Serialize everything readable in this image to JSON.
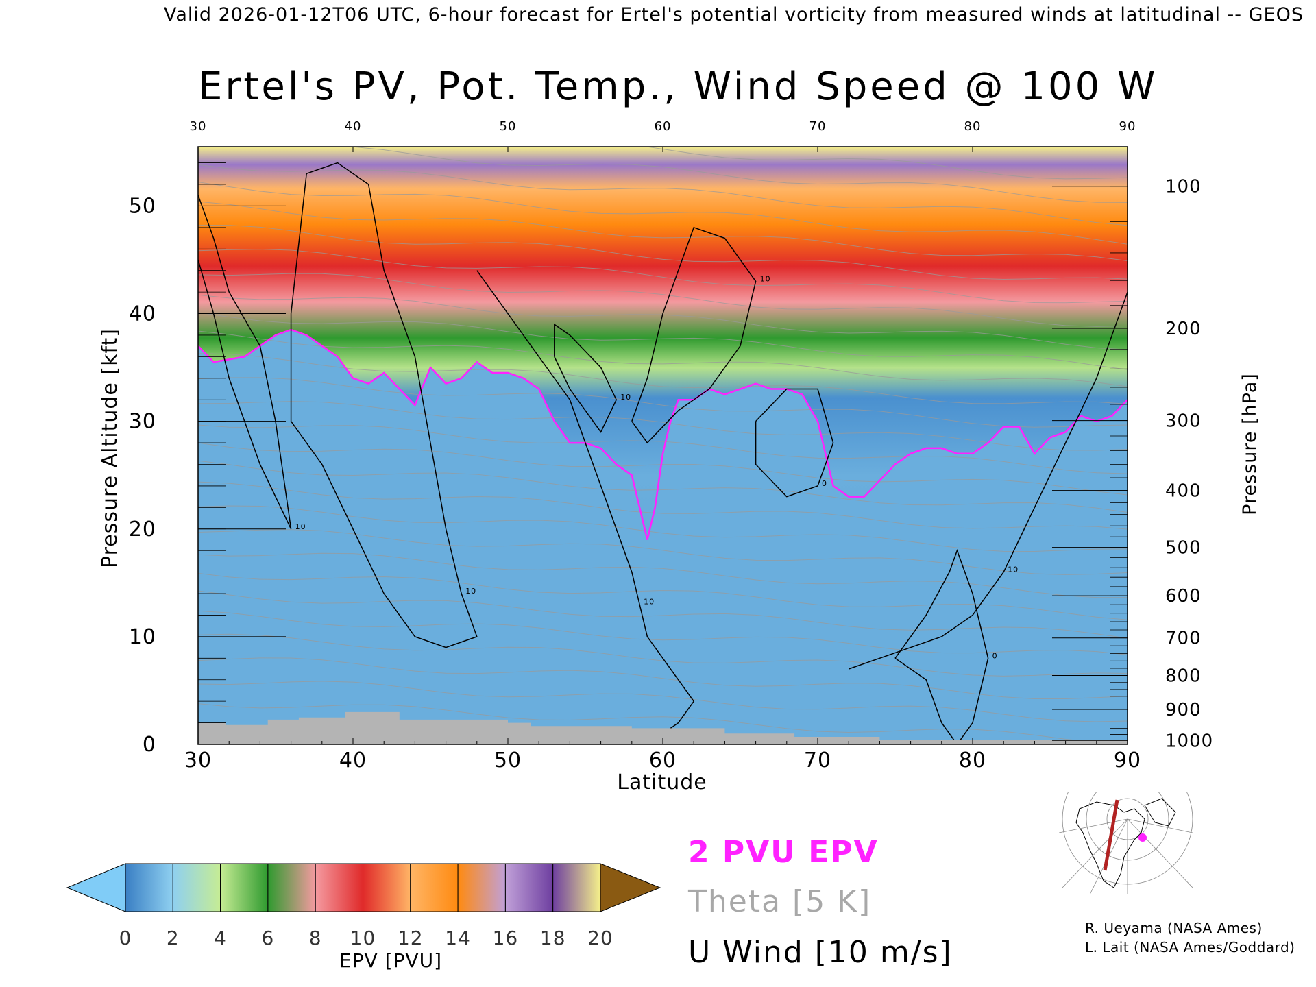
{
  "header": {
    "caption": "Valid 2026-01-12T06 UTC, 6-hour forecast for Ertel's potential vorticity from measured winds at latitudinal -- GEOS",
    "title": "Ertel's PV, Pot. Temp., Wind Speed @ 100 W"
  },
  "legend": {
    "epv_line": "2 PVU EPV",
    "theta_line": "Theta [5 K]",
    "wind_line": "U Wind [10 m/s]"
  },
  "colorbar": {
    "label": "EPV [PVU]",
    "ticks": [
      "0",
      "2",
      "4",
      "6",
      "8",
      "10",
      "12",
      "14",
      "16",
      "18",
      "20"
    ],
    "colors": [
      "#3a7fc4",
      "#8fd0f0",
      "#c6ec94",
      "#2f9a2f",
      "#f49aa0",
      "#e02a2a",
      "#ffb566",
      "#ff8a10",
      "#c0a0d8",
      "#6e3fa0",
      "#f5f08a"
    ],
    "under_color": "#80ccf7",
    "over_color": "#8a5a12"
  },
  "credits": {
    "line1": "R. Ueyama (NASA Ames)",
    "line2": "L. Lait (NASA Ames/Goddard)"
  },
  "chart_data": {
    "type": "heatmap",
    "title": "Ertel's PV, Pot. Temp., Wind Speed @ 100 W",
    "xlabel": "Latitude",
    "ylabel": "Pressure Altitude [kft]",
    "ylabel_right": "Pressure [hPa]",
    "x_ticks": [
      "30",
      "40",
      "50",
      "60",
      "70",
      "80",
      "90"
    ],
    "top_ticks": [
      "30",
      "40",
      "50",
      "60",
      "70",
      "80",
      "90"
    ],
    "y_ticks": [
      "0",
      "10",
      "20",
      "30",
      "40",
      "50"
    ],
    "pressure_ticks": [
      "100",
      "200",
      "300",
      "400",
      "500",
      "600",
      "700",
      "800",
      "900",
      "1000"
    ],
    "pressure_tick_values": [
      100,
      200,
      300,
      400,
      500,
      600,
      700,
      800,
      900,
      1000
    ],
    "xlim": [
      30,
      90
    ],
    "ylim": [
      0,
      55.5
    ],
    "tropopause_2pvu": {
      "lat": [
        30,
        31,
        33,
        35,
        36,
        37,
        38,
        39,
        40,
        41,
        42,
        43,
        44,
        45,
        46,
        47,
        48,
        49,
        50,
        51,
        52,
        53,
        54,
        55,
        56,
        57,
        58,
        58.5,
        59,
        59.5,
        60,
        60.5,
        61,
        62,
        63,
        64,
        65,
        66,
        67,
        68,
        69,
        70,
        71,
        72,
        73,
        74,
        75,
        76,
        77,
        78,
        79,
        80,
        81,
        82,
        83,
        84,
        85,
        86,
        87,
        88,
        89,
        90
      ],
      "kft": [
        37,
        35.5,
        36,
        38,
        38.5,
        38,
        37,
        36,
        34,
        33.5,
        34.5,
        33,
        31.5,
        35,
        33.5,
        34,
        35.5,
        34.5,
        34.5,
        34,
        33,
        30,
        28,
        28,
        27.5,
        26,
        25,
        22,
        19,
        22,
        27,
        30,
        32,
        32,
        33,
        32.5,
        33,
        33.5,
        33,
        33,
        32.5,
        30,
        24,
        23,
        23,
        24.5,
        26,
        27,
        27.5,
        27.5,
        27,
        27,
        28,
        29.5,
        29.5,
        27,
        28.5,
        29,
        30.5,
        30,
        30.5,
        32
      ]
    },
    "surface_topography": {
      "lat": [
        30,
        31.8,
        31.8,
        34.5,
        34.5,
        36.5,
        36.5,
        39.5,
        39.5,
        43,
        43,
        50,
        50,
        51.5,
        51.5,
        58,
        58,
        64,
        64,
        68.5,
        68.5,
        74,
        74,
        90
      ],
      "kft": [
        2,
        2,
        1.8,
        1.8,
        2.3,
        2.3,
        2.5,
        2.5,
        3,
        3,
        2.3,
        2.3,
        2,
        2,
        1.7,
        1.7,
        1.5,
        1.5,
        1,
        1,
        0.7,
        0.7,
        0.4,
        0.4
      ]
    },
    "u_wind_contours": [
      {
        "label": "10",
        "lat": [
          30,
          31,
          32,
          34,
          35,
          36,
          34,
          32,
          31,
          30
        ],
        "kft": [
          51,
          47,
          42,
          37,
          30,
          20,
          26,
          34,
          40,
          45
        ]
      },
      {
        "label": "10",
        "lat": [
          36,
          37,
          39,
          41,
          42,
          44,
          45,
          46,
          47,
          48,
          46,
          44,
          42,
          40,
          38,
          36,
          36
        ],
        "kft": [
          40,
          53,
          54,
          52,
          44,
          36,
          28,
          20,
          14,
          10,
          9,
          10,
          14,
          20,
          26,
          30,
          40
        ]
      },
      {
        "label": "10",
        "lat": [
          48,
          50,
          52,
          54,
          55,
          56,
          57,
          58,
          58.5,
          59,
          60,
          61,
          62,
          61,
          60,
          59
        ],
        "kft": [
          44,
          40,
          36,
          32,
          28,
          24,
          20,
          16,
          13,
          10,
          8,
          6,
          4,
          2,
          1,
          0
        ]
      },
      {
        "label": "10",
        "lat": [
          53,
          54,
          55,
          56,
          57,
          56,
          54,
          53,
          53
        ],
        "kft": [
          36,
          33,
          31,
          29,
          32,
          35,
          38,
          39,
          36
        ]
      },
      {
        "label": "10",
        "lat": [
          58,
          59,
          60,
          62,
          64,
          66,
          65,
          63,
          61,
          59,
          58
        ],
        "kft": [
          30,
          34,
          40,
          48,
          47,
          43,
          37,
          33,
          31,
          28,
          30
        ]
      },
      {
        "label": "0",
        "lat": [
          66,
          68,
          70,
          71,
          70,
          68,
          66,
          66
        ],
        "kft": [
          30,
          33,
          33,
          28,
          24,
          23,
          26,
          30
        ]
      },
      {
        "label": "10",
        "lat": [
          72,
          74,
          76,
          78,
          80,
          82,
          84,
          86,
          88,
          90
        ],
        "kft": [
          7,
          8,
          9,
          10,
          12,
          16,
          22,
          28,
          34,
          42
        ]
      },
      {
        "label": "0",
        "lat": [
          75,
          77,
          78.5,
          79,
          80,
          81,
          80,
          79,
          78,
          77,
          75
        ],
        "kft": [
          8,
          12,
          16,
          18,
          14,
          8,
          2,
          0,
          2,
          6,
          8
        ]
      }
    ]
  }
}
